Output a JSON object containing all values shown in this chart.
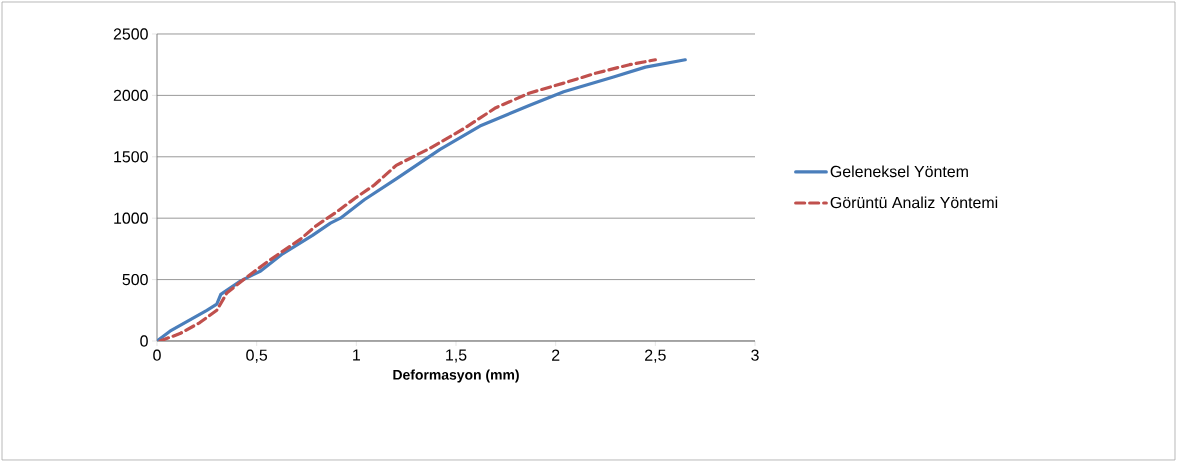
{
  "chart_data": {
    "type": "line",
    "xlabel": "Deformasyon (mm)",
    "xlim": [
      0,
      3
    ],
    "xticks": [
      0,
      {
        "value": 0.5,
        "label": "0,5"
      },
      1,
      {
        "value": 1.5,
        "label": "1,5"
      },
      2,
      {
        "value": 2.5,
        "label": "2,5"
      },
      3
    ],
    "ylim": [
      0,
      2500
    ],
    "yticks": [
      0,
      500,
      1000,
      1500,
      2000,
      2500
    ],
    "grid": "y",
    "legend": "right",
    "series": [
      {
        "name": "Geleneksel Yöntem",
        "color": "#4a7ebb",
        "line_style": "solid",
        "x": [
          0,
          0.065,
          0.25,
          0.3,
          0.32,
          0.42,
          0.52,
          0.63,
          0.78,
          0.87,
          0.92,
          1.04,
          1.2,
          1.42,
          1.62,
          1.87,
          2.04,
          2.29,
          2.45,
          2.65
        ],
        "values": [
          0,
          80,
          250,
          300,
          380,
          490,
          570,
          710,
          860,
          960,
          1000,
          1150,
          1320,
          1560,
          1750,
          1920,
          2030,
          2150,
          2230,
          2290
        ]
      },
      {
        "name": "Görüntü Analiz Yöntemi",
        "color": "#c0504d",
        "line_style": "dashed",
        "x": [
          0.015,
          0.115,
          0.215,
          0.3,
          0.35,
          0.45,
          0.55,
          0.63,
          0.72,
          0.8,
          0.9,
          1.0,
          1.09,
          1.2,
          1.37,
          1.54,
          1.7,
          1.87,
          2.04,
          2.2,
          2.37,
          2.5
        ],
        "values": [
          0,
          60,
          150,
          250,
          390,
          520,
          640,
          730,
          830,
          940,
          1050,
          1170,
          1270,
          1430,
          1570,
          1730,
          1900,
          2020,
          2100,
          2180,
          2250,
          2290
        ]
      }
    ]
  }
}
